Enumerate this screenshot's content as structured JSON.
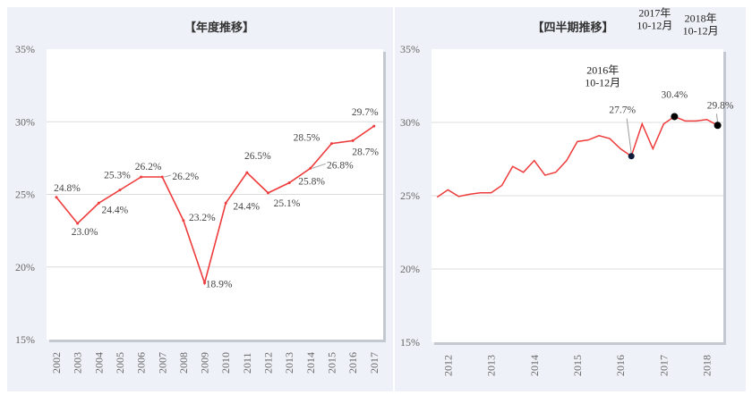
{
  "chart_data": [
    {
      "type": "line",
      "title": "【年度推移】",
      "categories": [
        "2002",
        "2003",
        "2004",
        "2005",
        "2006",
        "2007",
        "2008",
        "2009",
        "2010",
        "2011",
        "2012",
        "2013",
        "2014",
        "2015",
        "2016",
        "2017"
      ],
      "values": [
        24.8,
        23.0,
        24.4,
        25.3,
        26.2,
        26.2,
        23.2,
        18.9,
        24.4,
        26.5,
        25.1,
        25.8,
        26.8,
        28.5,
        28.7,
        29.7
      ],
      "data_labels": [
        "24.8%",
        "23.0%",
        "24.4%",
        "25.3%",
        "26.2%",
        "26.2%",
        "23.2%",
        "18.9%",
        "24.4%",
        "26.5%",
        "25.1%",
        "25.8%",
        "26.8%",
        "28.5%",
        "28.7%",
        "29.7%"
      ],
      "ylim": [
        15,
        35
      ],
      "yticks": [
        "15%",
        "20%",
        "25%",
        "30%",
        "35%"
      ],
      "grid": true,
      "line_color": "#ee3b3b"
    },
    {
      "type": "line",
      "title": "【四半期推移】",
      "values": [
        24.9,
        25.4,
        24.95,
        25.1,
        25.2,
        25.2,
        25.7,
        27.0,
        26.6,
        27.4,
        26.4,
        26.6,
        27.4,
        28.7,
        28.8,
        29.1,
        28.9,
        28.2,
        27.7,
        29.9,
        28.2,
        29.9,
        30.4,
        30.1,
        30.1,
        30.2,
        29.8
      ],
      "xtick_labels": [
        "2012",
        "2013",
        "2014",
        "2015",
        "2016",
        "2017",
        "2018"
      ],
      "xtick_index": [
        1,
        5,
        9,
        13,
        17,
        21,
        25
      ],
      "ylim": [
        15,
        35
      ],
      "yticks": [
        "15%",
        "20%",
        "25%",
        "30%",
        "35%"
      ],
      "grid": true,
      "line_color": "#ee3b3b",
      "annotations": [
        {
          "index": 18,
          "period": [
            "2016年",
            "10-12月"
          ],
          "label": "27.7%"
        },
        {
          "index": 22,
          "period": [
            "2017年",
            "10-12月"
          ],
          "label": "30.4%"
        },
        {
          "index": 26,
          "period": [
            "2018年",
            "10-12月"
          ],
          "label": "29.8%"
        }
      ]
    }
  ]
}
